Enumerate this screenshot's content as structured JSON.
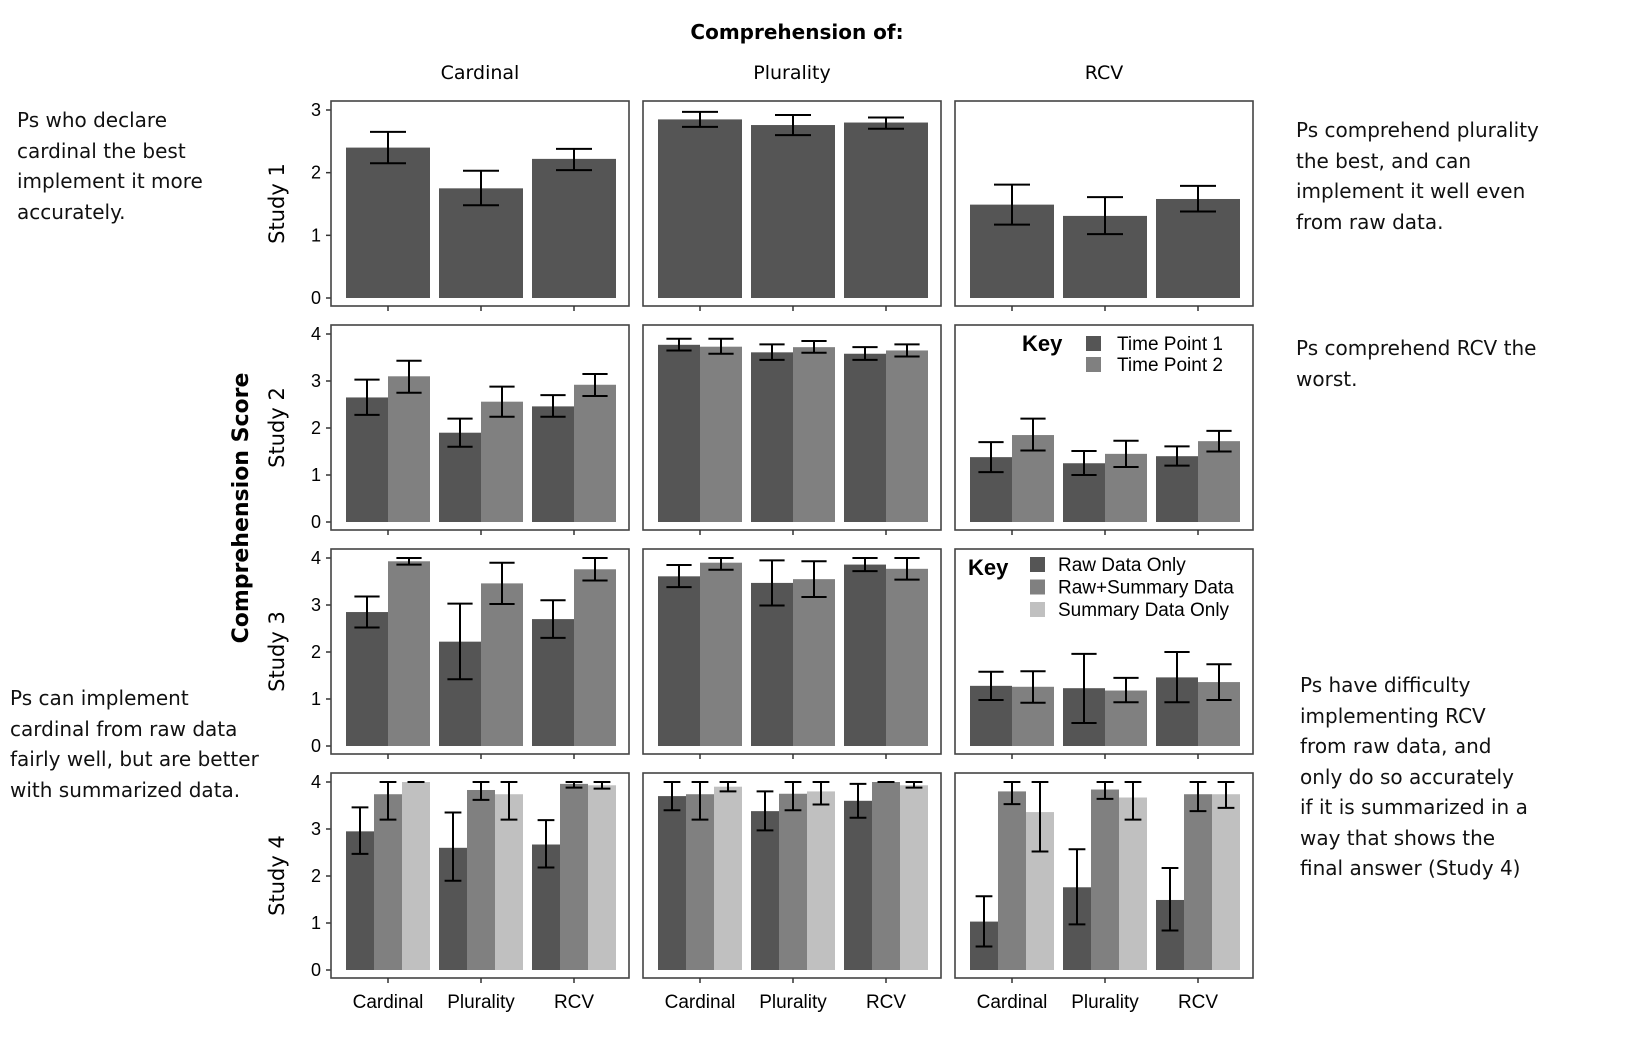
{
  "annotations": {
    "top_left": "Ps who declare\ncardinal the best\nimplement it more\naccurately.",
    "top_right": "Ps comprehend plurality\nthe best, and can\nimplement it well even\nfrom raw data.",
    "mid_right": "Ps comprehend RCV the\nworst.",
    "bottom_left": "Ps can implement\ncardinal from raw data\nfairly well, but are better\nwith summarized data.",
    "bottom_right": "Ps have difficulty\nimplementing RCV\nfrom raw data, and\nonly do so accurately\nif it is summarized in a\nway that shows the\nfinal answer (Study 4)"
  },
  "chart_data": {
    "type": "bar",
    "title": "Comprehension of:",
    "ylabel": "Comprehension Score",
    "columns": [
      "Cardinal",
      "Plurality",
      "RCV"
    ],
    "categories": [
      "Cardinal",
      "Plurality",
      "RCV"
    ],
    "colors": {
      "series1": "#555555",
      "series2": "#808080",
      "series3": "#c0c0c0"
    },
    "grid": false,
    "legends": [
      {
        "row": 1,
        "column": 2,
        "title": "Key",
        "entries": [
          "Time Point 1",
          "Time Point 2"
        ]
      },
      {
        "row": 2,
        "column": 2,
        "title": "Key",
        "entries": [
          "Raw Data Only",
          "Raw+Summary Data",
          "Summary Data Only"
        ]
      }
    ],
    "rows": [
      {
        "label": "Study 1",
        "ylim": [
          0,
          3
        ],
        "yticks": [
          "0",
          "1",
          "2",
          "3"
        ],
        "panels": [
          {
            "series": [
              {
                "values": [
                  2.4,
                  1.75,
                  2.22
                ],
                "error_low": [
                  2.15,
                  1.48,
                  2.04
                ],
                "error_high": [
                  2.65,
                  2.03,
                  2.38
                ]
              }
            ]
          },
          {
            "series": [
              {
                "values": [
                  2.85,
                  2.76,
                  2.8
                ],
                "error_low": [
                  2.73,
                  2.6,
                  2.7
                ],
                "error_high": [
                  2.97,
                  2.92,
                  2.88
                ]
              }
            ]
          },
          {
            "series": [
              {
                "values": [
                  1.49,
                  1.31,
                  1.58
                ],
                "error_low": [
                  1.17,
                  1.02,
                  1.38
                ],
                "error_high": [
                  1.81,
                  1.61,
                  1.79
                ]
              }
            ]
          }
        ]
      },
      {
        "label": "Study 2",
        "ylim": [
          0,
          4
        ],
        "yticks": [
          "0",
          "1",
          "2",
          "3",
          "4"
        ],
        "panels": [
          {
            "series": [
              {
                "name": "Time Point 1",
                "values": [
                  2.65,
                  1.9,
                  2.46
                ],
                "error_low": [
                  2.28,
                  1.6,
                  2.24
                ],
                "error_high": [
                  3.03,
                  2.2,
                  2.7
                ]
              },
              {
                "name": "Time Point 2",
                "values": [
                  3.1,
                  2.56,
                  2.92
                ],
                "error_low": [
                  2.75,
                  2.24,
                  2.68
                ],
                "error_high": [
                  3.43,
                  2.88,
                  3.15
                ]
              }
            ]
          },
          {
            "series": [
              {
                "name": "Time Point 1",
                "values": [
                  3.77,
                  3.61,
                  3.58
                ],
                "error_low": [
                  3.65,
                  3.45,
                  3.45
                ],
                "error_high": [
                  3.9,
                  3.78,
                  3.72
                ]
              },
              {
                "name": "Time Point 2",
                "values": [
                  3.73,
                  3.72,
                  3.65
                ],
                "error_low": [
                  3.58,
                  3.6,
                  3.52
                ],
                "error_high": [
                  3.9,
                  3.85,
                  3.78
                ]
              }
            ]
          },
          {
            "series": [
              {
                "name": "Time Point 1",
                "values": [
                  1.38,
                  1.25,
                  1.4
                ],
                "error_low": [
                  1.06,
                  1.0,
                  1.2
                ],
                "error_high": [
                  1.7,
                  1.51,
                  1.61
                ]
              },
              {
                "name": "Time Point 2",
                "values": [
                  1.85,
                  1.45,
                  1.72
                ],
                "error_low": [
                  1.52,
                  1.17,
                  1.5
                ],
                "error_high": [
                  2.2,
                  1.73,
                  1.94
                ]
              }
            ]
          }
        ]
      },
      {
        "label": "Study 3",
        "ylim": [
          0,
          4
        ],
        "yticks": [
          "0",
          "1",
          "2",
          "3",
          "4"
        ],
        "panels": [
          {
            "series": [
              {
                "name": "Raw Data Only",
                "values": [
                  2.85,
                  2.22,
                  2.7
                ],
                "error_low": [
                  2.52,
                  1.42,
                  2.3
                ],
                "error_high": [
                  3.18,
                  3.03,
                  3.1
                ]
              },
              {
                "name": "Raw+Summary Data",
                "values": [
                  3.93,
                  3.46,
                  3.76
                ],
                "error_low": [
                  3.86,
                  3.02,
                  3.52
                ],
                "error_high": [
                  4.0,
                  3.9,
                  4.0
                ]
              }
            ]
          },
          {
            "series": [
              {
                "name": "Raw Data Only",
                "values": [
                  3.61,
                  3.47,
                  3.86
                ],
                "error_low": [
                  3.38,
                  2.99,
                  3.72
                ],
                "error_high": [
                  3.85,
                  3.95,
                  4.0
                ]
              },
              {
                "name": "Raw+Summary Data",
                "values": [
                  3.9,
                  3.55,
                  3.77
                ],
                "error_low": [
                  3.75,
                  3.17,
                  3.54
                ],
                "error_high": [
                  4.0,
                  3.93,
                  4.0
                ]
              }
            ]
          },
          {
            "series": [
              {
                "name": "Raw Data Only",
                "values": [
                  1.28,
                  1.23,
                  1.46
                ],
                "error_low": [
                  0.98,
                  0.49,
                  0.93
                ],
                "error_high": [
                  1.58,
                  1.96,
                  2.0
                ]
              },
              {
                "name": "Raw+Summary Data",
                "values": [
                  1.26,
                  1.18,
                  1.36
                ],
                "error_low": [
                  0.92,
                  0.93,
                  0.98
                ],
                "error_high": [
                  1.59,
                  1.45,
                  1.74
                ]
              }
            ]
          }
        ]
      },
      {
        "label": "Study 4",
        "ylim": [
          0,
          4
        ],
        "yticks": [
          "0",
          "1",
          "2",
          "3",
          "4"
        ],
        "panels": [
          {
            "series": [
              {
                "name": "Raw Data Only",
                "values": [
                  2.95,
                  2.6,
                  2.67
                ],
                "error_low": [
                  2.47,
                  1.9,
                  2.18
                ],
                "error_high": [
                  3.46,
                  3.35,
                  3.19
                ]
              },
              {
                "name": "Raw+Summary Data",
                "values": [
                  3.74,
                  3.83,
                  3.96
                ],
                "error_low": [
                  3.2,
                  3.62,
                  3.88
                ],
                "error_high": [
                  4.0,
                  4.0,
                  4.0
                ]
              },
              {
                "name": "Summary Data Only",
                "values": [
                  4.0,
                  3.74,
                  3.93
                ],
                "error_low": [
                  4.0,
                  3.2,
                  3.86
                ],
                "error_high": [
                  4.0,
                  4.0,
                  4.0
                ]
              }
            ]
          },
          {
            "series": [
              {
                "name": "Raw Data Only",
                "values": [
                  3.7,
                  3.38,
                  3.6
                ],
                "error_low": [
                  3.4,
                  2.97,
                  3.24
                ],
                "error_high": [
                  4.0,
                  3.8,
                  3.96
                ]
              },
              {
                "name": "Raw+Summary Data",
                "values": [
                  3.74,
                  3.75,
                  4.0
                ],
                "error_low": [
                  3.2,
                  3.4,
                  4.0
                ],
                "error_high": [
                  4.0,
                  4.0,
                  4.0
                ]
              },
              {
                "name": "Summary Data Only",
                "values": [
                  3.9,
                  3.8,
                  3.93
                ],
                "error_low": [
                  3.8,
                  3.52,
                  3.88
                ],
                "error_high": [
                  4.0,
                  4.0,
                  4.0
                ]
              }
            ]
          },
          {
            "series": [
              {
                "name": "Raw Data Only",
                "values": [
                  1.03,
                  1.76,
                  1.49
                ],
                "error_low": [
                  0.5,
                  0.97,
                  0.84
                ],
                "error_high": [
                  1.57,
                  2.57,
                  2.17
                ]
              },
              {
                "name": "Raw+Summary Data",
                "values": [
                  3.8,
                  3.84,
                  3.74
                ],
                "error_low": [
                  3.53,
                  3.64,
                  3.38
                ],
                "error_high": [
                  4.0,
                  4.0,
                  4.0
                ]
              },
              {
                "name": "Summary Data Only",
                "values": [
                  3.36,
                  3.67,
                  3.74
                ],
                "error_low": [
                  2.52,
                  3.2,
                  3.45
                ],
                "error_high": [
                  4.0,
                  4.0,
                  4.0
                ]
              }
            ]
          }
        ]
      }
    ]
  }
}
